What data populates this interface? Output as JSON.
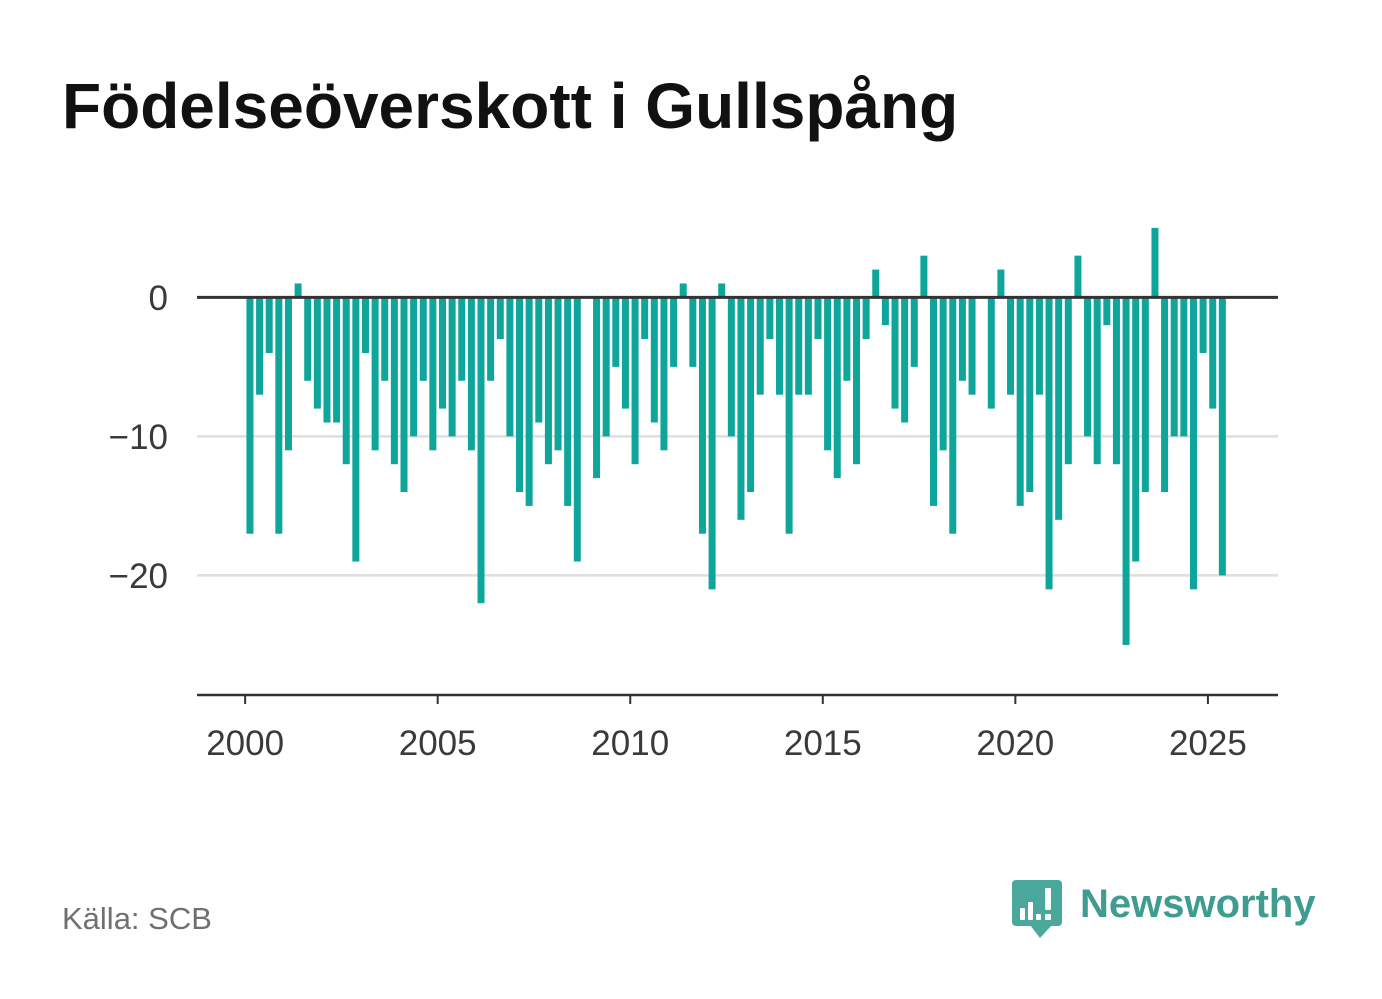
{
  "chart_data": {
    "type": "bar",
    "title": "Födelseöverskott i Gullspång",
    "x": [
      "2000-Q1",
      "2000-Q2",
      "2000-Q3",
      "2000-Q4",
      "2001-Q1",
      "2001-Q2",
      "2001-Q3",
      "2001-Q4",
      "2002-Q1",
      "2002-Q2",
      "2002-Q3",
      "2002-Q4",
      "2003-Q1",
      "2003-Q2",
      "2003-Q3",
      "2003-Q4",
      "2004-Q1",
      "2004-Q2",
      "2004-Q3",
      "2004-Q4",
      "2005-Q1",
      "2005-Q2",
      "2005-Q3",
      "2005-Q4",
      "2006-Q1",
      "2006-Q2",
      "2006-Q3",
      "2006-Q4",
      "2007-Q1",
      "2007-Q2",
      "2007-Q3",
      "2007-Q4",
      "2008-Q1",
      "2008-Q2",
      "2008-Q3",
      "2008-Q4",
      "2009-Q1",
      "2009-Q2",
      "2009-Q3",
      "2009-Q4",
      "2010-Q1",
      "2010-Q2",
      "2010-Q3",
      "2010-Q4",
      "2011-Q1",
      "2011-Q2",
      "2011-Q3",
      "2011-Q4",
      "2012-Q1",
      "2012-Q2",
      "2012-Q3",
      "2012-Q4",
      "2013-Q1",
      "2013-Q2",
      "2013-Q3",
      "2013-Q4",
      "2014-Q1",
      "2014-Q2",
      "2014-Q3",
      "2014-Q4",
      "2015-Q1",
      "2015-Q2",
      "2015-Q3",
      "2015-Q4",
      "2016-Q1",
      "2016-Q2",
      "2016-Q3",
      "2016-Q4",
      "2017-Q1",
      "2017-Q2",
      "2017-Q3",
      "2017-Q4",
      "2018-Q1",
      "2018-Q2",
      "2018-Q3",
      "2018-Q4",
      "2019-Q1",
      "2019-Q2",
      "2019-Q3",
      "2019-Q4",
      "2020-Q1",
      "2020-Q2",
      "2020-Q3",
      "2020-Q4",
      "2021-Q1",
      "2021-Q2",
      "2021-Q3",
      "2021-Q4",
      "2022-Q1",
      "2022-Q2",
      "2022-Q3",
      "2022-Q4",
      "2023-Q1",
      "2023-Q2",
      "2023-Q3",
      "2023-Q4",
      "2024-Q1",
      "2024-Q2",
      "2024-Q3",
      "2024-Q4",
      "2025-Q1",
      "2025-Q2"
    ],
    "values": [
      -17,
      -7,
      -4,
      -17,
      -11,
      1,
      -6,
      -8,
      -9,
      -9,
      -12,
      -19,
      -4,
      -11,
      -6,
      -12,
      -14,
      -10,
      -6,
      -11,
      -8,
      -10,
      -6,
      -11,
      -22,
      -6,
      -3,
      -10,
      -14,
      -15,
      -9,
      -12,
      -11,
      -15,
      -19,
      0,
      -13,
      -10,
      -5,
      -8,
      -12,
      -3,
      -9,
      -11,
      -5,
      1,
      -5,
      -17,
      -21,
      1,
      -10,
      -16,
      -14,
      -7,
      -3,
      -7,
      -17,
      -7,
      -7,
      -3,
      -11,
      -13,
      -6,
      -12,
      -3,
      2,
      -2,
      -8,
      -9,
      -5,
      3,
      -15,
      -11,
      -17,
      -6,
      -7,
      0,
      -8,
      2,
      -7,
      -15,
      -14,
      -7,
      -21,
      -16,
      -12,
      3,
      -10,
      -12,
      -2,
      -12,
      -25,
      -19,
      -14,
      5,
      -14,
      -10,
      -10,
      -21,
      -4,
      -8,
      -20
    ],
    "xlim": [
      1998.75,
      2026.82
    ],
    "ylim": [
      -28.6,
      6.5
    ],
    "xticks": [
      {
        "value": 2000,
        "label": "2000"
      },
      {
        "value": 2005,
        "label": "2005"
      },
      {
        "value": 2010,
        "label": "2010"
      },
      {
        "value": 2015,
        "label": "2015"
      },
      {
        "value": 2020,
        "label": "2020"
      },
      {
        "value": 2025,
        "label": "2025"
      }
    ],
    "yticks": [
      {
        "value": 0,
        "label": "0"
      },
      {
        "value": -10,
        "label": "−10"
      },
      {
        "value": -20,
        "label": "−20"
      }
    ],
    "grid": true,
    "legend": "none"
  },
  "source": "Källa: SCB",
  "brand": {
    "name": "Newsworthy",
    "icon": "newsworthy-logo-icon"
  },
  "colors": {
    "bar": "#0ea59b",
    "brand": "#3f9c90",
    "brand_icon": "#4aa79b"
  }
}
